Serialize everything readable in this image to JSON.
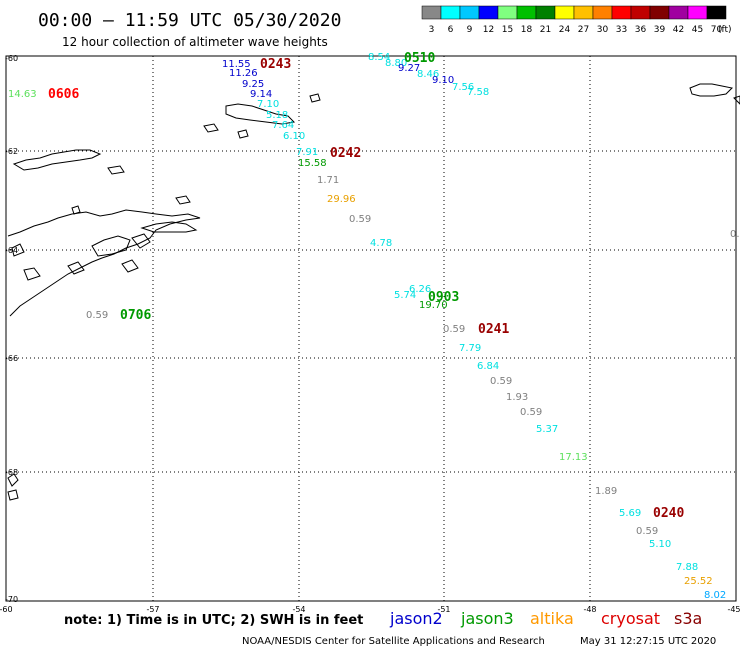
{
  "header": {
    "title": "00:00 – 11:59 UTC 05/30/2020",
    "subtitle": "12 hour collection of altimeter wave heights"
  },
  "colorbar": {
    "values": [
      "3",
      "6",
      "9",
      "12",
      "15",
      "18",
      "21",
      "24",
      "27",
      "30",
      "33",
      "36",
      "39",
      "42",
      "45",
      "70"
    ],
    "unit": "(ft)",
    "colors": [
      "#888888",
      "#00ffff",
      "#00c8ff",
      "#0000ff",
      "#80ff80",
      "#00c000",
      "#008000",
      "#ffff00",
      "#ffc000",
      "#ff8000",
      "#ff0000",
      "#c00000",
      "#800000",
      "#a000a0",
      "#ff00ff",
      "#000000"
    ]
  },
  "axes": {
    "lat_labels": [
      "-60",
      "-62",
      "-64",
      "-66",
      "-68",
      "-70"
    ],
    "lon_labels": [
      "-60",
      "-57",
      "-54",
      "-51",
      "-48",
      "-45"
    ]
  },
  "footer": {
    "note": "note: 1) Time is in UTC; 2) SWH is in feet",
    "credit": "NOAA/NESDIS Center for Satellite Applications and Research",
    "timestamp": "May 31 12:27:15 UTC 2020"
  },
  "legend": [
    {
      "name": "jason2",
      "color": "#0000cc"
    },
    {
      "name": "jason3",
      "color": "#009900"
    },
    {
      "name": "altika",
      "color": "#ff9900"
    },
    {
      "name": "cryosat",
      "color": "#dd0000"
    },
    {
      "name": "s3a",
      "color": "#880000"
    }
  ],
  "colors": {
    "grey": "#808080",
    "cyan": "#00e0e0",
    "sky": "#00a8ff",
    "blue": "#0000cc",
    "ltgreen": "#5de05d",
    "green": "#009900",
    "orange": "#e8a000",
    "red": "#ff0000",
    "dkred": "#990000"
  },
  "time_labels": [
    {
      "text": "0243",
      "color": "#990000"
    },
    {
      "text": "0510",
      "color": "#009900"
    },
    {
      "text": "0606",
      "color": "#ff0000"
    },
    {
      "text": "0242",
      "color": "#990000"
    },
    {
      "text": "0903",
      "color": "#009900"
    },
    {
      "text": "0706",
      "color": "#009900"
    },
    {
      "text": "0241",
      "color": "#990000"
    },
    {
      "text": "0240",
      "color": "#990000"
    }
  ],
  "observations": [
    {
      "v": "11.55",
      "c": "#0000cc"
    },
    {
      "v": "11.26",
      "c": "#0000cc"
    },
    {
      "v": "9.25",
      "c": "#0000cc"
    },
    {
      "v": "9.14",
      "c": "#0000cc"
    },
    {
      "v": "7.10",
      "c": "#00e0e0"
    },
    {
      "v": "5.18",
      "c": "#00e0e0"
    },
    {
      "v": "7.64",
      "c": "#00e0e0"
    },
    {
      "v": "6.10",
      "c": "#00e0e0"
    },
    {
      "v": "7.91",
      "c": "#00e0e0"
    },
    {
      "v": "15.58",
      "c": "#009900"
    },
    {
      "v": "1.71",
      "c": "#808080"
    },
    {
      "v": "29.96",
      "c": "#e8a000"
    },
    {
      "v": "0.59",
      "c": "#808080"
    },
    {
      "v": "4.78",
      "c": "#00e0e0"
    },
    {
      "v": "8.54",
      "c": "#00e0e0"
    },
    {
      "v": "8.80",
      "c": "#00e0e0"
    },
    {
      "v": "9.27",
      "c": "#0000cc"
    },
    {
      "v": "8.46",
      "c": "#00e0e0"
    },
    {
      "v": "9.10",
      "c": "#0000cc"
    },
    {
      "v": "7.56",
      "c": "#00e0e0"
    },
    {
      "v": "7.58",
      "c": "#00e0e0"
    },
    {
      "v": "14.63",
      "c": "#5de05d"
    },
    {
      "v": "0.59",
      "c": "#808080"
    },
    {
      "v": "0.",
      "c": "#808080"
    },
    {
      "v": "5.74",
      "c": "#00e0e0"
    },
    {
      "v": "6.26",
      "c": "#00e0e0"
    },
    {
      "v": "19.70",
      "c": "#009900"
    },
    {
      "v": "0.59",
      "c": "#808080"
    },
    {
      "v": "7.79",
      "c": "#00e0e0"
    },
    {
      "v": "6.84",
      "c": "#00e0e0"
    },
    {
      "v": "0.59",
      "c": "#808080"
    },
    {
      "v": "1.93",
      "c": "#808080"
    },
    {
      "v": "0.59",
      "c": "#808080"
    },
    {
      "v": "5.37",
      "c": "#00e0e0"
    },
    {
      "v": "17.13",
      "c": "#5de05d"
    },
    {
      "v": "1.89",
      "c": "#808080"
    },
    {
      "v": "5.69",
      "c": "#00e0e0"
    },
    {
      "v": "0.59",
      "c": "#808080"
    },
    {
      "v": "5.10",
      "c": "#00e0e0"
    },
    {
      "v": "7.88",
      "c": "#00e0e0"
    },
    {
      "v": "25.52",
      "c": "#e8a000"
    },
    {
      "v": "8.02",
      "c": "#00a8ff"
    }
  ]
}
